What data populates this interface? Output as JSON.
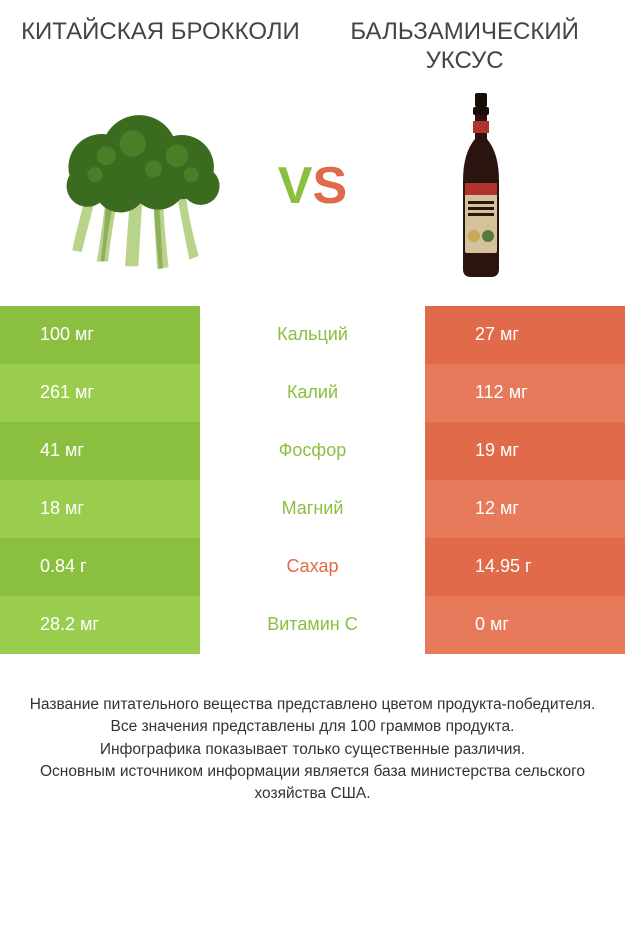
{
  "titles": {
    "left": "КИТАЙСКАЯ БРОККОЛИ",
    "right": "БАЛЬЗАМИЧЕСКИЙ УКСУС"
  },
  "vs": {
    "v": "V",
    "s": "S"
  },
  "colors": {
    "left_primary": "#8bbf3f",
    "left_alt": "#9acc4d",
    "right_primary": "#e06a49",
    "right_alt": "#e67a5a",
    "mid_text_left": "#8bbf3f",
    "mid_text_right": "#e06a49",
    "footer_text": "#333333",
    "title_text": "#444444",
    "value_text": "#ffffff"
  },
  "rows": [
    {
      "left": "100 мг",
      "mid": "Кальций",
      "right": "27 мг",
      "winner": "left"
    },
    {
      "left": "261 мг",
      "mid": "Калий",
      "right": "112 мг",
      "winner": "left"
    },
    {
      "left": "41 мг",
      "mid": "Фосфор",
      "right": "19 мг",
      "winner": "left"
    },
    {
      "left": "18 мг",
      "mid": "Магний",
      "right": "12 мг",
      "winner": "left"
    },
    {
      "left": "0.84 г",
      "mid": "Сахар",
      "right": "14.95 г",
      "winner": "right"
    },
    {
      "left": "28.2 мг",
      "mid": "Витамин C",
      "right": "0 мг",
      "winner": "left"
    }
  ],
  "footer_lines": [
    "Название питательного вещества представлено цветом продукта-победителя.",
    "Все значения представлены для 100 граммов продукта.",
    "Инфографика показывает только существенные различия.",
    "Основным источником информации является база министерства сельского хозяйства США."
  ],
  "broccoli_svg": {
    "floret_color": "#3a6b1f",
    "floret_highlight": "#5a8f2e",
    "stem_color": "#b8d48a",
    "stem_shadow": "#8fae5e"
  },
  "bottle_svg": {
    "body_color": "#2a1410",
    "cap_color": "#1a0c08",
    "label_bg": "#d4c29a",
    "label_accent": "#b0342c",
    "label_text": "#2a1410"
  }
}
